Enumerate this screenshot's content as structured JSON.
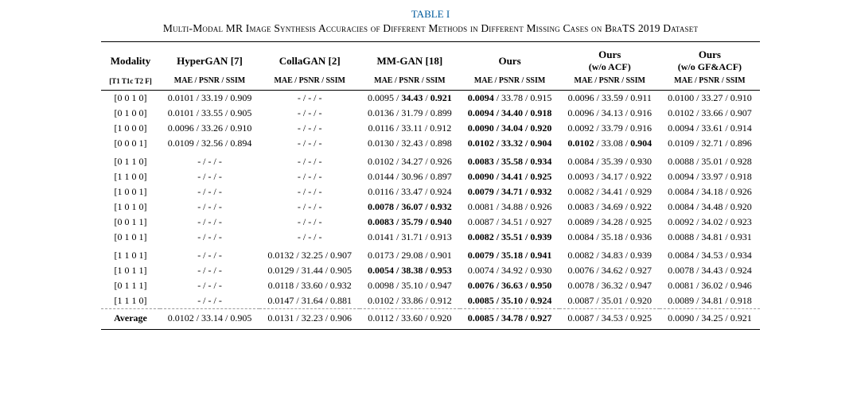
{
  "caption": "TABLE I",
  "title": "Multi-Modal MR Image Synthesis Accuracies of Different Methods in Different Missing Cases on BraTS 2019 Dataset",
  "modality_header": "Modality",
  "modality_sub": "[T1 T1c T2 F]",
  "metric_sub": "MAE / PSNR / SSIM",
  "average_label": "Average",
  "methods": [
    {
      "name": "HyperGAN [7]",
      "sub": ""
    },
    {
      "name": "CollaGAN [2]",
      "sub": ""
    },
    {
      "name": "MM-GAN [18]",
      "sub": ""
    },
    {
      "name": "Ours",
      "sub": ""
    },
    {
      "name": "Ours",
      "sub": "(w/o ACF)"
    },
    {
      "name": "Ours",
      "sub": "(w/o GF&ACF)"
    }
  ],
  "rows": [
    {
      "mod": "[0 0 1 0]",
      "cells": [
        {
          "v": "0.0101 / 33.19 / 0.909"
        },
        {
          "v": "-  /  -  /  -"
        },
        {
          "v": "0.0095 / <b>34.43</b> / <b>0.921</b>"
        },
        {
          "v": "<b>0.0094</b> / 33.78 / 0.915"
        },
        {
          "v": "0.0096 / 33.59 / 0.911"
        },
        {
          "v": "0.0100 / 33.27 / 0.910"
        }
      ]
    },
    {
      "mod": "[0 1 0 0]",
      "cells": [
        {
          "v": "0.0101 / 33.55 / 0.905"
        },
        {
          "v": "-  /  -  /  -"
        },
        {
          "v": "0.0136 / 31.79 / 0.899"
        },
        {
          "v": "<b>0.0094 / 34.40 / 0.918</b>"
        },
        {
          "v": "0.0096 / 34.13 / 0.916"
        },
        {
          "v": "0.0102 / 33.66 / 0.907"
        }
      ]
    },
    {
      "mod": "[1 0 0 0]",
      "cells": [
        {
          "v": "0.0096 / 33.26 / 0.910"
        },
        {
          "v": "-  /  -  /  -"
        },
        {
          "v": "0.0116 / 33.11 / 0.912"
        },
        {
          "v": "<b>0.0090 / 34.04 / 0.920</b>"
        },
        {
          "v": "0.0092 / 33.79 / 0.916"
        },
        {
          "v": "0.0094 / 33.61 / 0.914"
        }
      ]
    },
    {
      "mod": "[0 0 0 1]",
      "cells": [
        {
          "v": "0.0109 / 32.56 / 0.894"
        },
        {
          "v": "-  /  -  /  -"
        },
        {
          "v": "0.0130 / 32.43 / 0.898"
        },
        {
          "v": "<b>0.0102 / 33.32 / 0.904</b>"
        },
        {
          "v": "<b>0.0102</b> / 33.08 / <b>0.904</b>"
        },
        {
          "v": "0.0109 / 32.71 / 0.896"
        }
      ]
    },
    {
      "mod": "[0 1 1 0]",
      "sep": true,
      "cells": [
        {
          "v": "-  /  -  /  -"
        },
        {
          "v": "-  /  -  /  -"
        },
        {
          "v": "0.0102 / 34.27 / 0.926"
        },
        {
          "v": "<b>0.0083 / 35.58 / 0.934</b>"
        },
        {
          "v": "0.0084 / 35.39 / 0.930"
        },
        {
          "v": "0.0088 / 35.01 / 0.928"
        }
      ]
    },
    {
      "mod": "[1 1 0 0]",
      "cells": [
        {
          "v": "-  /  -  /  -"
        },
        {
          "v": "-  /  -  /  -"
        },
        {
          "v": "0.0144 / 30.96 / 0.897"
        },
        {
          "v": "<b>0.0090 / 34.41 / 0.925</b>"
        },
        {
          "v": "0.0093 / 34.17 / 0.922"
        },
        {
          "v": "0.0094 / 33.97 / 0.918"
        }
      ]
    },
    {
      "mod": "[1 0 0 1]",
      "cells": [
        {
          "v": "-  /  -  /  -"
        },
        {
          "v": "-  /  -  /  -"
        },
        {
          "v": "0.0116 / 33.47 / 0.924"
        },
        {
          "v": "<b>0.0079 / 34.71 / 0.932</b>"
        },
        {
          "v": "0.0082 / 34.41 / 0.929"
        },
        {
          "v": "0.0084 / 34.18 / 0.926"
        }
      ]
    },
    {
      "mod": "[1 0 1 0]",
      "cells": [
        {
          "v": "-  /  -  /  -"
        },
        {
          "v": "-  /  -  /  -"
        },
        {
          "v": "<b>0.0078 / 36.07 / 0.932</b>"
        },
        {
          "v": "0.0081 / 34.88 / 0.926"
        },
        {
          "v": "0.0083 / 34.69 / 0.922"
        },
        {
          "v": "0.0084 / 34.48 / 0.920"
        }
      ]
    },
    {
      "mod": "[0 0 1 1]",
      "cells": [
        {
          "v": "-  /  -  /  -"
        },
        {
          "v": "-  /  -  /  -"
        },
        {
          "v": "<b>0.0083 / 35.79 / 0.940</b>"
        },
        {
          "v": "0.0087 / 34.51 / 0.927"
        },
        {
          "v": "0.0089 / 34.28 / 0.925"
        },
        {
          "v": "0.0092 / 34.02 / 0.923"
        }
      ]
    },
    {
      "mod": "[0 1 0 1]",
      "cells": [
        {
          "v": "-  /  -  /  -"
        },
        {
          "v": "-  /  -  /  -"
        },
        {
          "v": "0.0141 / 31.71 / 0.913"
        },
        {
          "v": "<b>0.0082 / 35.51 / 0.939</b>"
        },
        {
          "v": "0.0084 / 35.18 / 0.936"
        },
        {
          "v": "0.0088 / 34.81 / 0.931"
        }
      ]
    },
    {
      "mod": "[1 1 0 1]",
      "sep": true,
      "cells": [
        {
          "v": "-  /  -  /  -"
        },
        {
          "v": "0.0132 / 32.25 / 0.907"
        },
        {
          "v": "0.0173 / 29.08 / 0.901"
        },
        {
          "v": "<b>0.0079 / 35.18 / 0.941</b>"
        },
        {
          "v": "0.0082 / 34.83 / 0.939"
        },
        {
          "v": "0.0084 / 34.53 / 0.934"
        }
      ]
    },
    {
      "mod": "[1 0 1 1]",
      "cells": [
        {
          "v": "-  /  -  /  -"
        },
        {
          "v": "0.0129 / 31.44 / 0.905"
        },
        {
          "v": "<b>0.0054 / 38.38 / 0.953</b>"
        },
        {
          "v": "0.0074 / 34.92 / 0.930"
        },
        {
          "v": "0.0076 / 34.62 / 0.927"
        },
        {
          "v": "0.0078 / 34.43 / 0.924"
        }
      ]
    },
    {
      "mod": "[0 1 1 1]",
      "cells": [
        {
          "v": "-  /  -  /  -"
        },
        {
          "v": "0.0118 / 33.60 / 0.932"
        },
        {
          "v": "0.0098 / 35.10 / 0.947"
        },
        {
          "v": "<b>0.0076 / 36.63 / 0.950</b>"
        },
        {
          "v": "0.0078 / 36.32 / 0.947"
        },
        {
          "v": "0.0081 / 36.02 / 0.946"
        }
      ]
    },
    {
      "mod": "[1 1 1 0]",
      "cells": [
        {
          "v": "-  /  -  /  -"
        },
        {
          "v": "0.0147 / 31.64 / 0.881"
        },
        {
          "v": "0.0102 / 33.86 / 0.912"
        },
        {
          "v": "<b>0.0085 / 35.10 / 0.924</b>"
        },
        {
          "v": "0.0087 / 35.01 / 0.920"
        },
        {
          "v": "0.0089 / 34.81 / 0.918"
        }
      ]
    }
  ],
  "average": [
    {
      "v": "0.0102 / 33.14 / 0.905"
    },
    {
      "v": "0.0131 / 32.23 / 0.906"
    },
    {
      "v": "0.0112 / 33.60 / 0.920"
    },
    {
      "v": "<b>0.0085 / 34.78 / 0.927</b>"
    },
    {
      "v": "0.0087 / 34.53 / 0.925"
    },
    {
      "v": "0.0090 / 34.25 / 0.921"
    }
  ]
}
